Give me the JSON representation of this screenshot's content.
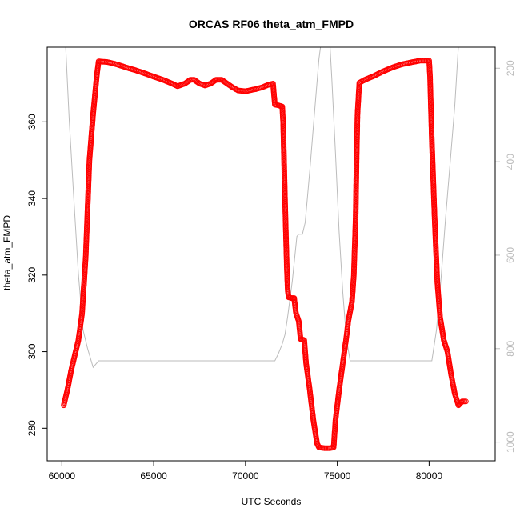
{
  "chart_data": {
    "type": "scatter",
    "title": "ORCAS RF06 theta_atm_FMPD",
    "xlabel": "UTC Seconds",
    "ylabel": "theta_atm_FMPD",
    "xlim": [
      59200,
      83600
    ],
    "ylim": [
      271.5,
      379.5
    ],
    "x_ticks": [
      60000,
      65000,
      70000,
      75000,
      80000
    ],
    "y_ticks": [
      280,
      300,
      320,
      340,
      360
    ],
    "secondary_axis": {
      "side": "right",
      "inverted": true,
      "ylim": [
        1040,
        155
      ],
      "ticks": [
        200,
        400,
        600,
        800,
        1000
      ],
      "color": "#bbbbbb"
    },
    "legend": "none",
    "grid": false,
    "series": [
      {
        "marker": "open-circle",
        "color": "#ff0000",
        "points": [
          [
            60100,
            286
          ],
          [
            60300,
            290
          ],
          [
            60500,
            295
          ],
          [
            60700,
            299
          ],
          [
            60900,
            303
          ],
          [
            61100,
            310
          ],
          [
            61300,
            325
          ],
          [
            61500,
            350
          ],
          [
            61700,
            362
          ],
          [
            61900,
            372
          ],
          [
            62000,
            375.8
          ],
          [
            62500,
            375.6
          ],
          [
            63000,
            375
          ],
          [
            63500,
            374.2
          ],
          [
            64000,
            373.5
          ],
          [
            64500,
            372.7
          ],
          [
            65000,
            371.8
          ],
          [
            65500,
            371
          ],
          [
            66000,
            370
          ],
          [
            66300,
            369.3
          ],
          [
            66700,
            370
          ],
          [
            67000,
            371
          ],
          [
            67200,
            371
          ],
          [
            67500,
            370
          ],
          [
            67800,
            369.5
          ],
          [
            68100,
            370
          ],
          [
            68400,
            371
          ],
          [
            68700,
            371
          ],
          [
            69000,
            370
          ],
          [
            69300,
            369
          ],
          [
            69600,
            368.2
          ],
          [
            70000,
            368
          ],
          [
            70300,
            368.3
          ],
          [
            70600,
            368.6
          ],
          [
            70900,
            369
          ],
          [
            71200,
            369.6
          ],
          [
            71500,
            370
          ],
          [
            71600,
            364.5
          ],
          [
            71800,
            364.3
          ],
          [
            72000,
            364
          ],
          [
            72050,
            360
          ],
          [
            72150,
            340
          ],
          [
            72250,
            322
          ],
          [
            72300,
            316
          ],
          [
            72350,
            314.2
          ],
          [
            72500,
            314
          ],
          [
            72650,
            314
          ],
          [
            72750,
            310
          ],
          [
            72900,
            308
          ],
          [
            73000,
            303.3
          ],
          [
            73200,
            303
          ],
          [
            73300,
            297
          ],
          [
            73500,
            290
          ],
          [
            73700,
            282
          ],
          [
            73900,
            276
          ],
          [
            74000,
            275
          ],
          [
            74300,
            274.8
          ],
          [
            74600,
            274.8
          ],
          [
            74800,
            275
          ],
          [
            74900,
            282
          ],
          [
            75100,
            290
          ],
          [
            75300,
            297
          ],
          [
            75500,
            304
          ],
          [
            75600,
            308
          ],
          [
            75800,
            313
          ],
          [
            75900,
            320
          ],
          [
            76000,
            335
          ],
          [
            76050,
            350
          ],
          [
            76100,
            362
          ],
          [
            76200,
            370.2
          ],
          [
            76500,
            371
          ],
          [
            77000,
            372
          ],
          [
            77500,
            373.2
          ],
          [
            78000,
            374.2
          ],
          [
            78500,
            375
          ],
          [
            79000,
            375.5
          ],
          [
            79500,
            376
          ],
          [
            80000,
            376
          ],
          [
            80050,
            372
          ],
          [
            80150,
            355
          ],
          [
            80300,
            335
          ],
          [
            80450,
            318
          ],
          [
            80600,
            309
          ],
          [
            80800,
            303
          ],
          [
            81000,
            300
          ],
          [
            81200,
            294
          ],
          [
            81400,
            289
          ],
          [
            81600,
            286
          ],
          [
            81800,
            287
          ],
          [
            82000,
            287
          ]
        ]
      },
      {
        "axis": "secondary",
        "line": true,
        "color": "#bbbbbb",
        "points": [
          [
            60200,
            150
          ],
          [
            60400,
            310
          ],
          [
            60650,
            480
          ],
          [
            60900,
            640
          ],
          [
            61150,
            760
          ],
          [
            61400,
            800
          ],
          [
            61700,
            840
          ],
          [
            62000,
            826
          ],
          [
            65000,
            826
          ],
          [
            70000,
            826
          ],
          [
            71600,
            826
          ],
          [
            71800,
            810
          ],
          [
            72000,
            790
          ],
          [
            72150,
            770
          ],
          [
            72300,
            730
          ],
          [
            72550,
            655
          ],
          [
            72800,
            560
          ],
          [
            72900,
            555
          ],
          [
            73100,
            555
          ],
          [
            73250,
            530
          ],
          [
            73500,
            420
          ],
          [
            73750,
            300
          ],
          [
            74000,
            180
          ],
          [
            74100,
            150
          ],
          [
            74600,
            150
          ],
          [
            74700,
            220
          ],
          [
            74900,
            380
          ],
          [
            75100,
            550
          ],
          [
            75300,
            680
          ],
          [
            75500,
            780
          ],
          [
            75700,
            826
          ],
          [
            76000,
            826
          ],
          [
            78000,
            826
          ],
          [
            80000,
            826
          ],
          [
            80150,
            826
          ],
          [
            80400,
            760
          ],
          [
            80650,
            650
          ],
          [
            80900,
            520
          ],
          [
            81150,
            400
          ],
          [
            81400,
            280
          ],
          [
            81600,
            150
          ]
        ]
      }
    ]
  }
}
